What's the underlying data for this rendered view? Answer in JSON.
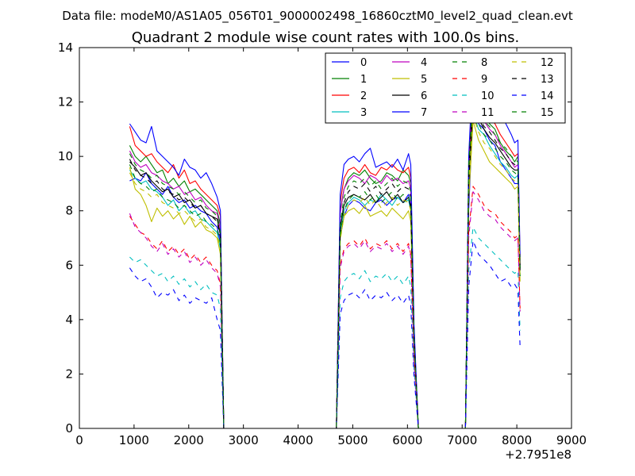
{
  "chart_data": {
    "type": "line",
    "suptitle": "Data file: modeM0/AS1A05_056T01_9000002498_16860cztM0_level2_quad_clean.evt",
    "title": "Quadrant 2 module wise count rates with 100.0s bins.",
    "xlabel": "",
    "ylabel": "",
    "offset_text": "+2.7951e8",
    "xlim": [
      0,
      9000
    ],
    "ylim": [
      0,
      14
    ],
    "xticks": [
      0,
      1000,
      2000,
      3000,
      4000,
      5000,
      6000,
      7000,
      8000,
      9000
    ],
    "yticks": [
      0,
      2,
      4,
      6,
      8,
      10,
      12,
      14
    ],
    "grid": false,
    "legend_position": "top-right",
    "x": [
      920,
      1020,
      1120,
      1220,
      1320,
      1420,
      1520,
      1620,
      1720,
      1820,
      1920,
      2020,
      2120,
      2220,
      2320,
      2420,
      2520,
      2580,
      2640,
      2700,
      4700,
      4770,
      4840,
      4920,
      5020,
      5120,
      5220,
      5320,
      5420,
      5520,
      5620,
      5720,
      5820,
      5920,
      6020,
      6060,
      6120,
      6200,
      6260,
      7060,
      7120,
      7200,
      7300,
      7400,
      7500,
      7600,
      7700,
      7800,
      7900,
      7960,
      8020,
      8060
    ],
    "series": [
      {
        "name": "0",
        "color": "#0000ff",
        "style": "solid",
        "values": [
          9.1,
          9.2,
          9.1,
          9.4,
          9.0,
          8.8,
          8.6,
          8.9,
          8.5,
          8.3,
          8.4,
          8.1,
          8.2,
          8.0,
          7.9,
          7.6,
          7.4,
          6.8,
          0,
          0,
          0,
          7.0,
          7.8,
          8.2,
          8.4,
          8.3,
          8.1,
          8.0,
          8.3,
          8.4,
          8.2,
          8.4,
          8.5,
          8.3,
          8.6,
          8.2,
          3.0,
          0,
          0,
          0,
          8.0,
          11.8,
          11.2,
          11.0,
          10.6,
          10.4,
          9.8,
          9.5,
          9.2,
          9.0,
          9.0,
          6.0
        ]
      },
      {
        "name": "1",
        "color": "#008000",
        "style": "solid",
        "values": [
          10.4,
          10.0,
          9.8,
          10.0,
          9.7,
          9.4,
          9.5,
          9.0,
          9.2,
          8.9,
          9.1,
          8.7,
          8.8,
          8.6,
          8.4,
          8.2,
          8.0,
          7.5,
          0,
          0,
          0,
          8.0,
          8.8,
          9.2,
          9.4,
          9.3,
          9.5,
          9.2,
          9.0,
          9.1,
          9.4,
          9.3,
          9.1,
          9.5,
          9.3,
          9.0,
          3.5,
          0,
          0,
          0,
          9.0,
          12.5,
          12.0,
          11.6,
          11.2,
          11.0,
          10.5,
          10.2,
          10.0,
          9.8,
          10.0,
          6.0
        ]
      },
      {
        "name": "2",
        "color": "#ff0000",
        "style": "solid",
        "values": [
          11.1,
          10.4,
          10.2,
          10.0,
          10.1,
          9.8,
          9.6,
          9.4,
          9.7,
          9.2,
          9.5,
          9.0,
          9.1,
          8.8,
          8.6,
          8.4,
          8.2,
          7.8,
          0,
          0,
          0,
          8.3,
          9.2,
          9.5,
          9.6,
          9.4,
          9.7,
          9.4,
          9.3,
          9.6,
          9.5,
          9.7,
          9.5,
          9.4,
          9.6,
          9.2,
          3.6,
          0,
          0,
          0,
          9.5,
          12.9,
          12.2,
          11.8,
          11.4,
          11.2,
          10.8,
          10.5,
          10.2,
          10.0,
          10.1,
          6.2
        ]
      },
      {
        "name": "3",
        "color": "#00bfbf",
        "style": "solid",
        "values": [
          9.5,
          9.2,
          9.0,
          9.1,
          8.8,
          8.7,
          8.5,
          8.2,
          8.4,
          8.0,
          8.2,
          7.9,
          8.0,
          7.7,
          7.6,
          7.4,
          7.2,
          6.6,
          0,
          0,
          0,
          7.2,
          8.0,
          8.3,
          8.5,
          8.4,
          8.2,
          8.4,
          8.3,
          8.6,
          8.4,
          8.2,
          8.5,
          8.3,
          8.4,
          8.0,
          3.1,
          0,
          0,
          0,
          8.6,
          11.6,
          11.0,
          10.8,
          10.4,
          10.1,
          9.8,
          9.6,
          9.3,
          9.2,
          9.3,
          5.6
        ]
      },
      {
        "name": "4",
        "color": "#bf00bf",
        "style": "solid",
        "values": [
          10.2,
          9.8,
          9.6,
          9.7,
          9.4,
          9.3,
          9.1,
          9.0,
          8.8,
          8.9,
          8.6,
          8.7,
          8.4,
          8.5,
          8.2,
          8.0,
          7.9,
          7.3,
          0,
          0,
          0,
          7.9,
          8.8,
          9.1,
          9.3,
          9.2,
          9.0,
          9.3,
          9.2,
          9.0,
          9.3,
          9.1,
          9.2,
          9.0,
          9.1,
          8.8,
          3.4,
          0,
          0,
          0,
          9.2,
          12.2,
          11.7,
          11.3,
          11.0,
          10.8,
          10.4,
          10.1,
          9.8,
          9.6,
          9.7,
          5.9
        ]
      },
      {
        "name": "5",
        "color": "#bfbf00",
        "style": "solid",
        "values": [
          9.6,
          8.8,
          8.6,
          8.2,
          7.6,
          8.1,
          7.8,
          8.0,
          7.7,
          7.9,
          7.5,
          7.8,
          7.4,
          7.6,
          7.3,
          7.2,
          7.0,
          6.4,
          0,
          0,
          0,
          7.0,
          7.8,
          8.0,
          8.1,
          7.9,
          8.2,
          7.8,
          7.9,
          8.0,
          7.8,
          8.1,
          7.9,
          7.7,
          8.0,
          7.6,
          3.0,
          0,
          0,
          0,
          8.4,
          11.3,
          10.6,
          10.2,
          9.8,
          9.6,
          9.4,
          9.2,
          9.0,
          8.8,
          8.9,
          5.4
        ]
      },
      {
        "name": "6",
        "color": "#000000",
        "style": "solid",
        "values": [
          9.8,
          9.6,
          9.3,
          9.4,
          9.1,
          8.9,
          8.7,
          8.8,
          8.5,
          8.6,
          8.3,
          8.4,
          8.1,
          8.2,
          7.9,
          7.8,
          7.7,
          7.1,
          0,
          0,
          0,
          7.4,
          8.2,
          8.5,
          8.6,
          8.5,
          8.4,
          8.6,
          8.3,
          8.5,
          8.7,
          8.4,
          8.6,
          8.3,
          8.5,
          8.1,
          3.2,
          0,
          0,
          0,
          9.0,
          11.9,
          11.4,
          11.0,
          10.7,
          10.5,
          10.2,
          9.9,
          9.6,
          9.5,
          9.5,
          5.8
        ]
      },
      {
        "name": "7",
        "color": "#0000ff",
        "style": "solid",
        "values": [
          11.2,
          10.9,
          10.6,
          10.5,
          11.1,
          10.2,
          10.0,
          9.8,
          9.6,
          9.3,
          9.9,
          9.6,
          9.5,
          9.2,
          9.4,
          9.0,
          8.5,
          8.0,
          0,
          0,
          0,
          8.6,
          9.7,
          9.9,
          10.0,
          9.8,
          10.1,
          10.3,
          9.6,
          9.7,
          9.8,
          9.6,
          9.9,
          9.5,
          10.1,
          9.7,
          3.8,
          0,
          0,
          0,
          10.0,
          13.4,
          12.6,
          12.0,
          11.8,
          11.9,
          12.2,
          11.2,
          10.8,
          10.5,
          10.6,
          6.3
        ]
      },
      {
        "name": "8",
        "color": "#008000",
        "style": "dashed",
        "values": [
          9.7,
          9.2,
          9.0,
          8.9,
          8.7,
          8.8,
          8.5,
          8.4,
          8.3,
          8.1,
          8.2,
          8.0,
          7.8,
          7.9,
          7.6,
          7.5,
          7.3,
          6.8,
          0,
          0,
          0,
          7.1,
          8.0,
          8.4,
          8.6,
          8.5,
          8.7,
          8.4,
          8.6,
          8.3,
          8.5,
          8.7,
          8.4,
          8.6,
          8.5,
          8.2,
          3.2,
          0,
          0,
          0,
          9.2,
          11.8,
          11.2,
          10.8,
          10.6,
          10.3,
          10.0,
          9.8,
          9.5,
          9.4,
          9.3,
          5.6
        ]
      },
      {
        "name": "9",
        "color": "#ff0000",
        "style": "dashed",
        "values": [
          7.8,
          7.5,
          7.2,
          7.1,
          6.8,
          6.6,
          6.9,
          6.5,
          6.7,
          6.4,
          6.6,
          6.2,
          6.4,
          6.1,
          6.3,
          6.0,
          5.8,
          5.3,
          0,
          0,
          0,
          6.0,
          6.6,
          6.8,
          6.9,
          6.7,
          7.0,
          6.6,
          6.8,
          6.7,
          6.9,
          6.6,
          6.8,
          6.5,
          6.8,
          6.4,
          2.6,
          0,
          0,
          0,
          7.2,
          8.9,
          8.6,
          8.2,
          8.0,
          7.9,
          7.6,
          7.4,
          7.2,
          7.0,
          7.1,
          4.4
        ]
      },
      {
        "name": "10",
        "color": "#00bfbf",
        "style": "dashed",
        "values": [
          6.3,
          6.1,
          6.2,
          6.0,
          5.8,
          5.6,
          5.7,
          5.4,
          5.6,
          5.3,
          5.5,
          5.2,
          5.4,
          5.1,
          5.3,
          5.0,
          4.9,
          4.4,
          0,
          0,
          0,
          4.8,
          5.4,
          5.6,
          5.7,
          5.5,
          5.8,
          5.4,
          5.6,
          5.5,
          5.7,
          5.4,
          5.6,
          5.3,
          5.6,
          5.2,
          2.2,
          0,
          0,
          0,
          5.8,
          7.4,
          7.0,
          6.8,
          6.6,
          6.4,
          6.2,
          6.0,
          5.8,
          5.7,
          5.8,
          3.6
        ]
      },
      {
        "name": "11",
        "color": "#bf00bf",
        "style": "dashed",
        "values": [
          7.9,
          7.4,
          7.2,
          7.0,
          6.7,
          6.5,
          6.8,
          6.4,
          6.6,
          6.3,
          6.5,
          6.1,
          6.3,
          6.0,
          6.2,
          5.9,
          5.7,
          5.2,
          0,
          0,
          0,
          5.9,
          6.5,
          6.7,
          6.8,
          6.6,
          6.9,
          6.5,
          6.7,
          6.6,
          6.8,
          6.5,
          6.7,
          6.4,
          6.7,
          6.3,
          2.5,
          0,
          0,
          0,
          7.0,
          8.7,
          8.4,
          8.0,
          7.8,
          7.7,
          7.4,
          7.2,
          7.0,
          6.9,
          7.0,
          4.3
        ]
      },
      {
        "name": "12",
        "color": "#bfbf00",
        "style": "dashed",
        "values": [
          9.4,
          9.0,
          8.8,
          8.7,
          8.5,
          8.6,
          8.3,
          8.2,
          8.1,
          7.9,
          8.0,
          7.8,
          7.6,
          7.7,
          7.4,
          7.3,
          7.1,
          6.6,
          0,
          0,
          0,
          6.9,
          7.8,
          8.2,
          8.4,
          8.3,
          8.5,
          8.2,
          8.4,
          8.1,
          8.3,
          8.5,
          8.2,
          8.4,
          8.3,
          8.0,
          3.1,
          0,
          0,
          0,
          9.0,
          11.5,
          10.9,
          10.5,
          10.3,
          10.0,
          9.7,
          9.5,
          9.2,
          9.1,
          9.0,
          5.5
        ]
      },
      {
        "name": "13",
        "color": "#000000",
        "style": "dashed",
        "values": [
          9.9,
          9.5,
          9.3,
          9.2,
          9.0,
          9.1,
          8.8,
          8.7,
          8.6,
          8.4,
          8.5,
          8.3,
          8.1,
          8.2,
          7.9,
          7.8,
          7.6,
          7.0,
          0,
          0,
          0,
          7.3,
          8.3,
          8.7,
          8.9,
          8.8,
          9.0,
          8.7,
          8.9,
          8.6,
          8.8,
          9.0,
          8.7,
          8.9,
          8.8,
          8.5,
          3.3,
          0,
          0,
          0,
          9.5,
          12.1,
          11.5,
          11.1,
          10.9,
          10.6,
          10.3,
          10.1,
          9.8,
          9.7,
          9.6,
          5.8
        ]
      },
      {
        "name": "14",
        "color": "#0000ff",
        "style": "dashed",
        "values": [
          5.9,
          5.6,
          5.4,
          5.5,
          5.2,
          4.8,
          5.0,
          4.9,
          5.1,
          4.7,
          4.9,
          4.6,
          4.8,
          4.7,
          4.6,
          4.8,
          4.0,
          3.6,
          0,
          0,
          0,
          4.2,
          4.7,
          4.9,
          5.0,
          4.8,
          5.1,
          4.7,
          4.9,
          4.8,
          5.0,
          4.7,
          4.9,
          4.6,
          4.9,
          4.5,
          1.9,
          0,
          0,
          0,
          5.2,
          6.9,
          6.4,
          6.2,
          6.0,
          5.7,
          5.4,
          5.5,
          5.2,
          5.3,
          5.1,
          3.0
        ]
      },
      {
        "name": "15",
        "color": "#008000",
        "style": "dashed",
        "values": [
          10.1,
          9.7,
          9.5,
          9.4,
          9.2,
          9.3,
          9.0,
          8.9,
          8.8,
          8.6,
          8.7,
          8.5,
          8.3,
          8.4,
          8.1,
          8.0,
          7.8,
          7.2,
          0,
          0,
          0,
          7.5,
          8.5,
          8.9,
          9.1,
          9.0,
          9.2,
          8.9,
          9.1,
          8.8,
          9.0,
          9.2,
          8.9,
          9.1,
          9.0,
          8.7,
          3.4,
          0,
          0,
          0,
          9.7,
          12.3,
          11.7,
          11.3,
          11.1,
          10.8,
          10.5,
          10.3,
          10.0,
          9.9,
          9.8,
          5.9
        ]
      }
    ]
  }
}
